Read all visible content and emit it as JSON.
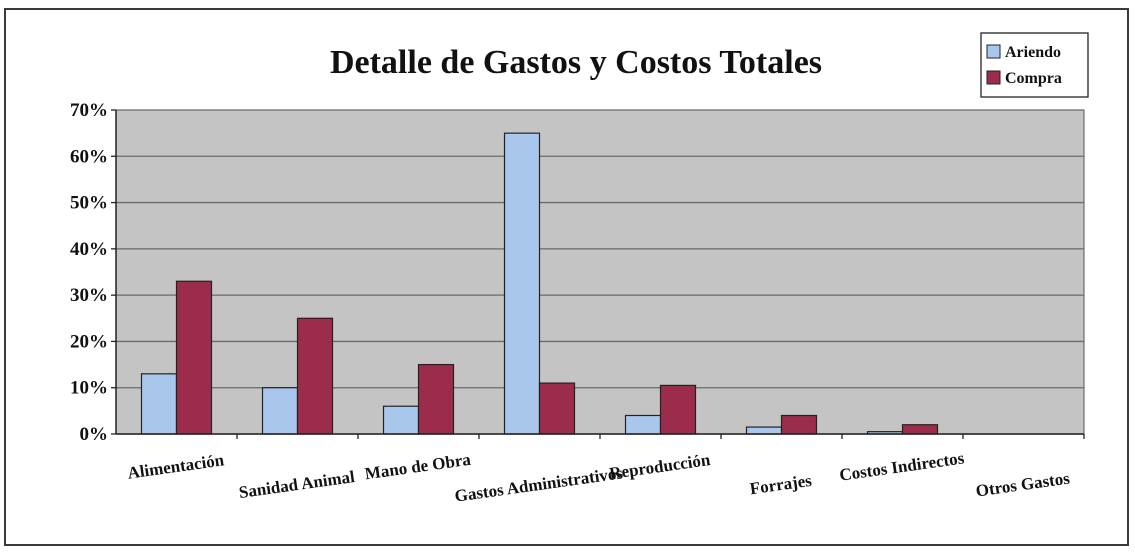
{
  "chart_data": {
    "type": "bar",
    "title": "Detalle de Gastos y Costos Totales",
    "xlabel": "",
    "ylabel": "",
    "categories": [
      "Alimentación",
      "Sanidad Animal",
      "Mano de Obra",
      "Gastos Administrativos",
      "Reproducción",
      "Forrajes",
      "Costos Indirectos",
      "Otros Gastos"
    ],
    "series": [
      {
        "name": "Ariendo",
        "values": [
          13,
          10,
          6,
          65,
          4,
          1.5,
          0.5,
          0
        ]
      },
      {
        "name": "Compra",
        "values": [
          33,
          25,
          15,
          11,
          10.5,
          4,
          2,
          0
        ]
      }
    ],
    "ylim": [
      0,
      70
    ],
    "yticks": [
      "0%",
      "10%",
      "20%",
      "30%",
      "40%",
      "50%",
      "60%",
      "70%"
    ],
    "grid": true,
    "legend": "top-right",
    "colors": {
      "Ariendo": "#a9c6ec",
      "Compra": "#9c2c4c",
      "plot_background": "#c4c4c4",
      "gridline": "#6a6a6a",
      "bar_outline": "#222222"
    }
  }
}
